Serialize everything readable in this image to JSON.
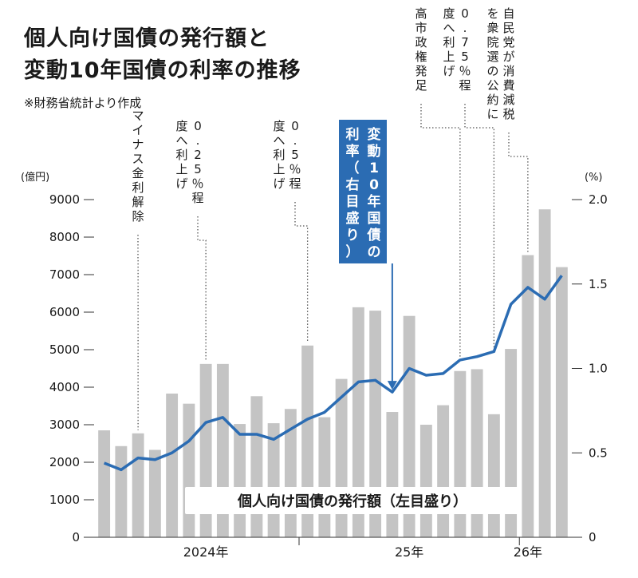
{
  "title_line1": "個人向け国債の発行額と",
  "title_line2": "変動10年国債の利率の推移",
  "source": "※財務省統計より作成",
  "chart_data": {
    "type": "bar+line",
    "left_axis": {
      "unit": "(億円)",
      "min": 0,
      "max": 9000,
      "ticks": [
        "0",
        "1000",
        "2000",
        "3000",
        "4000",
        "5000",
        "6000",
        "7000",
        "8000",
        "9000"
      ]
    },
    "right_axis": {
      "unit": "(%)",
      "min": 0,
      "max": 2.0,
      "ticks": [
        "0",
        "0.5",
        "1.0",
        "1.5",
        "2.0"
      ]
    },
    "x_labels": [
      {
        "label": "2024年",
        "index": 6
      },
      {
        "label": "25年",
        "index": 18
      },
      {
        "label": "26年",
        "index": 25
      }
    ],
    "bar_series": {
      "name": "個人向け国債の発行額（左目盛り）",
      "color": "#c4c4c4",
      "values": [
        2850,
        2430,
        2770,
        2330,
        3830,
        3560,
        4620,
        4620,
        3020,
        3760,
        3040,
        3420,
        5110,
        3200,
        4220,
        6130,
        6040,
        3340,
        5900,
        3000,
        3520,
        4430,
        4480,
        3280,
        5020,
        7520,
        8740,
        7200
      ]
    },
    "line_series": {
      "name": "変動10年国債の利率（右目盛り）",
      "color": "#2b6cb3",
      "values": [
        0.44,
        0.4,
        0.47,
        0.46,
        0.5,
        0.57,
        0.68,
        0.71,
        0.61,
        0.61,
        0.58,
        0.64,
        0.7,
        0.74,
        0.83,
        0.92,
        0.93,
        0.86,
        1.0,
        0.96,
        0.97,
        1.05,
        1.07,
        1.1,
        1.38,
        1.48,
        1.41,
        1.55
      ]
    },
    "annotations": [
      {
        "text": "マイナス金利解除",
        "index": 2
      },
      {
        "text": "0.25％程度へ利上げ",
        "index": 6
      },
      {
        "text": "0.5％程度へ利上げ",
        "index": 12
      },
      {
        "text": "高市政権発足",
        "index": 21
      },
      {
        "text": "0.75％程度へ利上げ",
        "index": 23
      },
      {
        "text": "自民党が消費減税を衆院選の公約に",
        "index": 25
      }
    ],
    "line_label": "変動10年国債の利率（右目盛り）",
    "legend": "個人向け国債の発行額（左目盛り）"
  }
}
